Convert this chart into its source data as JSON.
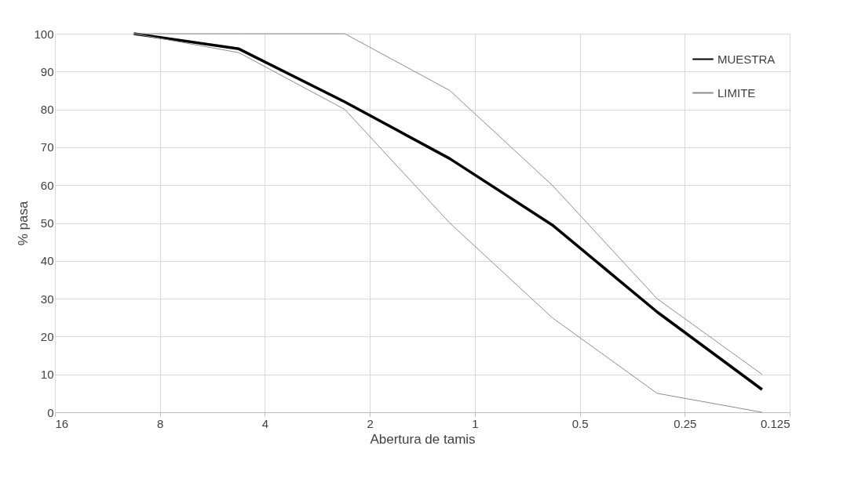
{
  "chart_data": {
    "type": "line",
    "xlabel": "Abertura de tamis",
    "ylabel": "% pasa",
    "x": [
      9.5,
      4.75,
      2.36,
      1.18,
      0.6,
      0.3,
      0.15
    ],
    "series": [
      {
        "name": "MUESTRA",
        "color": "#000000",
        "values": [
          100,
          96,
          82,
          67,
          49.5,
          26.5,
          6
        ]
      },
      {
        "name": "LIMITE",
        "color": "#8c8c8c",
        "values": [
          100,
          100,
          100,
          85,
          60,
          30,
          10
        ]
      },
      {
        "color": "#8c8c8c",
        "values": [
          100,
          95,
          80,
          50,
          25,
          5,
          0
        ]
      }
    ],
    "log": "x",
    "xlim": [
      16,
      0.125
    ],
    "xticks": [
      16,
      8,
      4,
      2,
      1,
      0.5,
      0.25,
      0.125
    ],
    "ylim": [
      0,
      100
    ],
    "yticks": [
      0,
      10,
      20,
      30,
      40,
      50,
      60,
      70,
      80,
      90,
      100
    ],
    "grid": true,
    "legend": "top right",
    "marker": "none",
    "line_style": "solid"
  }
}
